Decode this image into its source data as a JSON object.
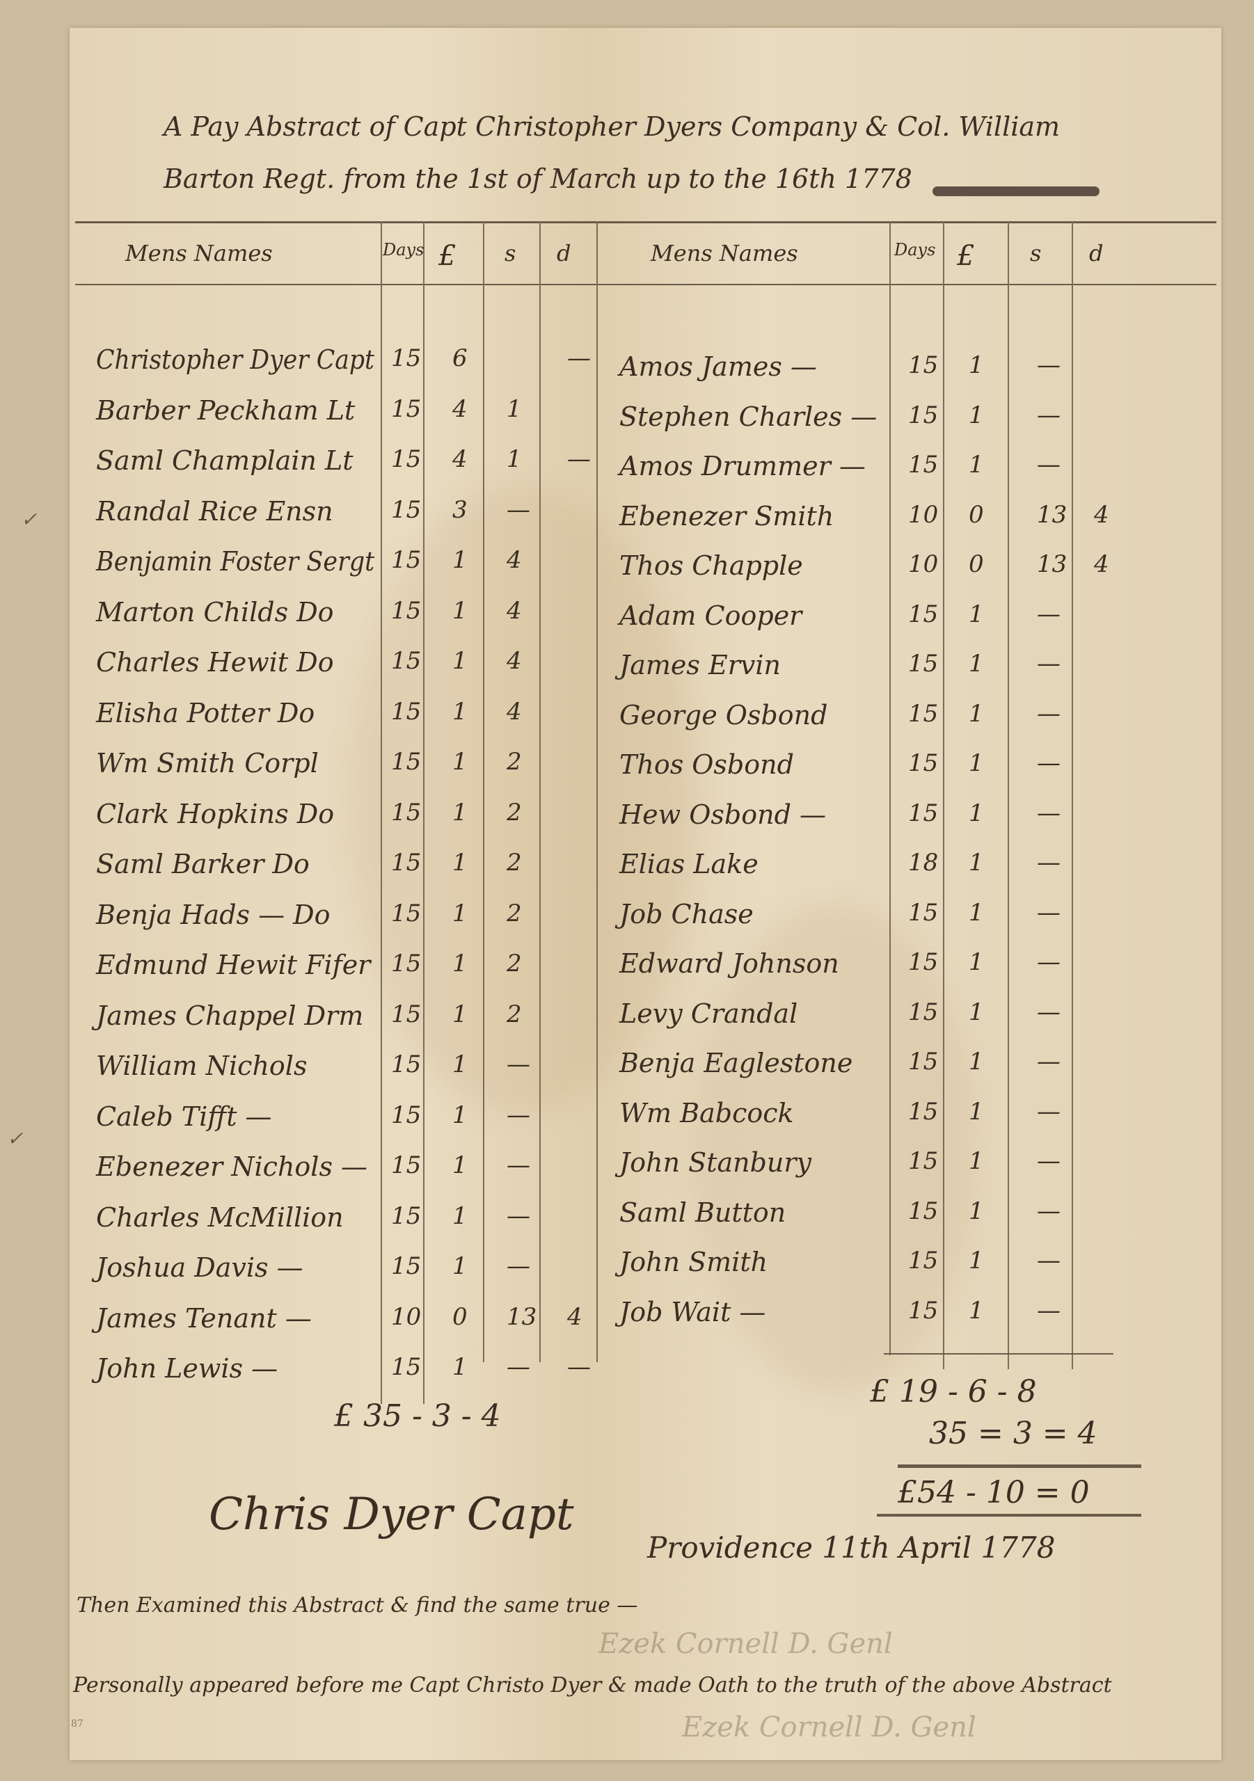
{
  "title": {
    "line1": "A Pay Abstract of Capt Christopher Dyers Company & Col. William",
    "line2": "Barton Regt. from the 1st of March up to the 16th 1778"
  },
  "left_table": {
    "headers": {
      "name": "Mens Names",
      "days": "Days",
      "pounds": "£",
      "shillings": "s",
      "pence": "d"
    },
    "rows": [
      {
        "name": "Christopher Dyer Capt",
        "days": "15",
        "pounds": "6",
        "shillings": "",
        "pence": "—"
      },
      {
        "name": "Barber Peckham Lt",
        "days": "15",
        "pounds": "4",
        "shillings": "1",
        "pence": ""
      },
      {
        "name": "Saml Champlain Lt",
        "days": "15",
        "pounds": "4",
        "shillings": "1",
        "pence": "—"
      },
      {
        "name": "Randal Rice Ensn",
        "days": "15",
        "pounds": "3",
        "shillings": "—",
        "pence": ""
      },
      {
        "name": "Benjamin Foster Sergt",
        "days": "15",
        "pounds": "1",
        "shillings": "4",
        "pence": ""
      },
      {
        "name": "Marton Childs Do",
        "days": "15",
        "pounds": "1",
        "shillings": "4",
        "pence": ""
      },
      {
        "name": "Charles Hewit Do",
        "days": "15",
        "pounds": "1",
        "shillings": "4",
        "pence": ""
      },
      {
        "name": "Elisha Potter Do",
        "days": "15",
        "pounds": "1",
        "shillings": "4",
        "pence": ""
      },
      {
        "name": "Wm Smith Corpl",
        "days": "15",
        "pounds": "1",
        "shillings": "2",
        "pence": ""
      },
      {
        "name": "Clark Hopkins Do",
        "days": "15",
        "pounds": "1",
        "shillings": "2",
        "pence": ""
      },
      {
        "name": "Saml Barker Do",
        "days": "15",
        "pounds": "1",
        "shillings": "2",
        "pence": ""
      },
      {
        "name": "Benja Hads — Do",
        "days": "15",
        "pounds": "1",
        "shillings": "2",
        "pence": ""
      },
      {
        "name": "Edmund Hewit Fifer",
        "days": "15",
        "pounds": "1",
        "shillings": "2",
        "pence": ""
      },
      {
        "name": "James Chappel Drm",
        "days": "15",
        "pounds": "1",
        "shillings": "2",
        "pence": ""
      },
      {
        "name": "William Nichols",
        "days": "15",
        "pounds": "1",
        "shillings": "—",
        "pence": ""
      },
      {
        "name": "Caleb Tifft —",
        "days": "15",
        "pounds": "1",
        "shillings": "—",
        "pence": ""
      },
      {
        "name": "Ebenezer Nichols —",
        "days": "15",
        "pounds": "1",
        "shillings": "—",
        "pence": ""
      },
      {
        "name": "Charles McMillion",
        "days": "15",
        "pounds": "1",
        "shillings": "—",
        "pence": ""
      },
      {
        "name": "Joshua Davis —",
        "days": "15",
        "pounds": "1",
        "shillings": "—",
        "pence": ""
      },
      {
        "name": "James Tenant —",
        "days": "10",
        "pounds": "0",
        "shillings": "13",
        "pence": "4"
      },
      {
        "name": "John Lewis —",
        "days": "15",
        "pounds": "1",
        "shillings": "—",
        "pence": "—"
      }
    ],
    "total": "£ 35 - 3 - 4"
  },
  "right_table": {
    "headers": {
      "name": "Mens Names",
      "days": "Days",
      "pounds": "£",
      "shillings": "s",
      "pence": "d"
    },
    "rows": [
      {
        "name": "Amos James —",
        "days": "15",
        "pounds": "1",
        "shillings": "—",
        "pence": ""
      },
      {
        "name": "Stephen Charles —",
        "days": "15",
        "pounds": "1",
        "shillings": "—",
        "pence": ""
      },
      {
        "name": "Amos Drummer —",
        "days": "15",
        "pounds": "1",
        "shillings": "—",
        "pence": ""
      },
      {
        "name": "Ebenezer Smith",
        "days": "10",
        "pounds": "0",
        "shillings": "13",
        "pence": "4"
      },
      {
        "name": "Thos Chapple",
        "days": "10",
        "pounds": "0",
        "shillings": "13",
        "pence": "4"
      },
      {
        "name": "Adam Cooper",
        "days": "15",
        "pounds": "1",
        "shillings": "—",
        "pence": ""
      },
      {
        "name": "James Ervin",
        "days": "15",
        "pounds": "1",
        "shillings": "—",
        "pence": ""
      },
      {
        "name": "George Osbond",
        "days": "15",
        "pounds": "1",
        "shillings": "—",
        "pence": ""
      },
      {
        "name": "Thos Osbond",
        "days": "15",
        "pounds": "1",
        "shillings": "—",
        "pence": ""
      },
      {
        "name": "Hew Osbond —",
        "days": "15",
        "pounds": "1",
        "shillings": "—",
        "pence": ""
      },
      {
        "name": "Elias Lake",
        "days": "18",
        "pounds": "1",
        "shillings": "—",
        "pence": ""
      },
      {
        "name": "Job Chase",
        "days": "15",
        "pounds": "1",
        "shillings": "—",
        "pence": ""
      },
      {
        "name": "Edward Johnson",
        "days": "15",
        "pounds": "1",
        "shillings": "—",
        "pence": ""
      },
      {
        "name": "Levy Crandal",
        "days": "15",
        "pounds": "1",
        "shillings": "—",
        "pence": ""
      },
      {
        "name": "Benja Eaglestone",
        "days": "15",
        "pounds": "1",
        "shillings": "—",
        "pence": ""
      },
      {
        "name": "Wm Babcock",
        "days": "15",
        "pounds": "1",
        "shillings": "—",
        "pence": ""
      },
      {
        "name": "John Stanbury",
        "days": "15",
        "pounds": "1",
        "shillings": "—",
        "pence": ""
      },
      {
        "name": "Saml Button",
        "days": "15",
        "pounds": "1",
        "shillings": "—",
        "pence": ""
      },
      {
        "name": "John Smith",
        "days": "15",
        "pounds": "1",
        "shillings": "—",
        "pence": ""
      },
      {
        "name": "Job Wait —",
        "days": "15",
        "pounds": "1",
        "shillings": "—",
        "pence": ""
      }
    ],
    "subtotal": "£ 19 - 6 - 8",
    "carried": "35 = 3 = 4",
    "grand_total": "£54 - 10 = 0"
  },
  "signature": "Chris Dyer Capt",
  "place_date": "Providence 11th April 1778",
  "examined_note": "Then Examined this Abstract & find the same true —",
  "oath_note": "Personally appeared before me Capt Christo Dyer & made Oath to the truth of the above Abstract",
  "faint_signature_1": "Ezek Cornell D. Genl",
  "faint_signature_2": "Ezek Cornell D. Genl",
  "page_number": "87",
  "margin_marks": [
    "✓",
    "✓"
  ]
}
